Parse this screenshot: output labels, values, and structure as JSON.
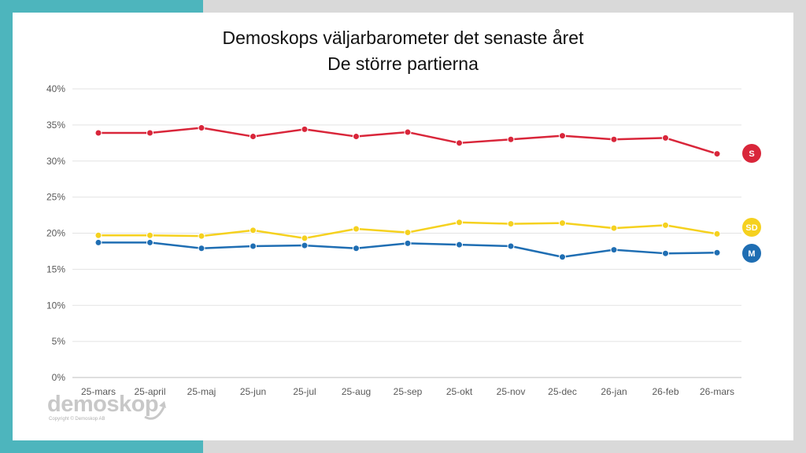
{
  "chart_data": {
    "type": "line",
    "title_line1": "Demoskops väljarbarometer det senaste året",
    "title_line2": "De större partierna",
    "categories": [
      "25-mars",
      "25-april",
      "25-maj",
      "25-jun",
      "25-jul",
      "25-aug",
      "25-sep",
      "25-okt",
      "25-nov",
      "25-dec",
      "26-jan",
      "26-feb",
      "26-mars"
    ],
    "y_ticks": [
      "0%",
      "5%",
      "10%",
      "15%",
      "20%",
      "25%",
      "30%",
      "35%",
      "40%"
    ],
    "ylim": [
      0,
      40
    ],
    "grid": true,
    "series": [
      {
        "name": "S",
        "color": "#d9263a",
        "values": [
          33.9,
          33.9,
          34.6,
          33.4,
          34.4,
          33.4,
          34.0,
          32.5,
          33.0,
          33.5,
          33.0,
          33.2,
          31.0
        ]
      },
      {
        "name": "SD",
        "color": "#f5d11f",
        "values": [
          19.7,
          19.7,
          19.6,
          20.4,
          19.3,
          20.6,
          20.1,
          21.5,
          21.3,
          21.4,
          20.7,
          21.1,
          19.9
        ]
      },
      {
        "name": "M",
        "color": "#1f6eb3",
        "values": [
          18.7,
          18.7,
          17.9,
          18.2,
          18.3,
          17.9,
          18.6,
          18.4,
          18.2,
          16.7,
          17.7,
          17.2,
          17.3
        ]
      }
    ]
  },
  "logo": {
    "wordmark": "demoskop",
    "copyright": "Copyright © Demoskop AB"
  }
}
